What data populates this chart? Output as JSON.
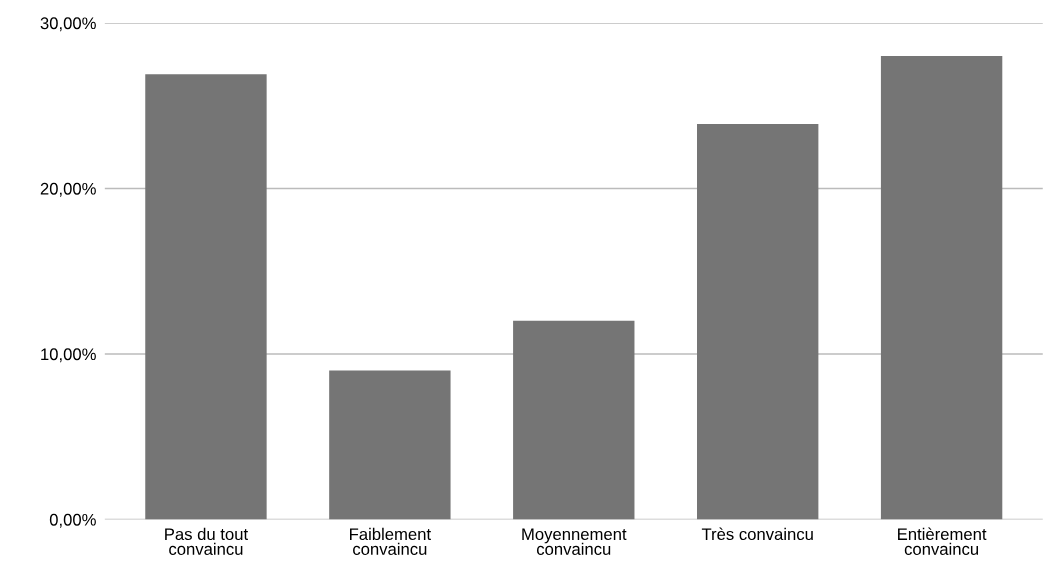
{
  "chart_data": {
    "type": "bar",
    "categories": [
      "Pas du tout\nconvaincu",
      "Faiblement\nconvaincu",
      "Moyennement\nconvaincu",
      "Très convaincu",
      "Entièrement\nconvaincu"
    ],
    "values": [
      26.9,
      9.0,
      12.0,
      23.9,
      28.0
    ],
    "color": "#757575",
    "ylim": [
      0,
      30
    ],
    "yticks": [
      {
        "value": 0,
        "label": "0,00%"
      },
      {
        "value": 10,
        "label": "10,00%"
      },
      {
        "value": 20,
        "label": "20,00%"
      },
      {
        "value": 30,
        "label": "30,00%"
      }
    ],
    "grid": "y",
    "legend": false
  }
}
